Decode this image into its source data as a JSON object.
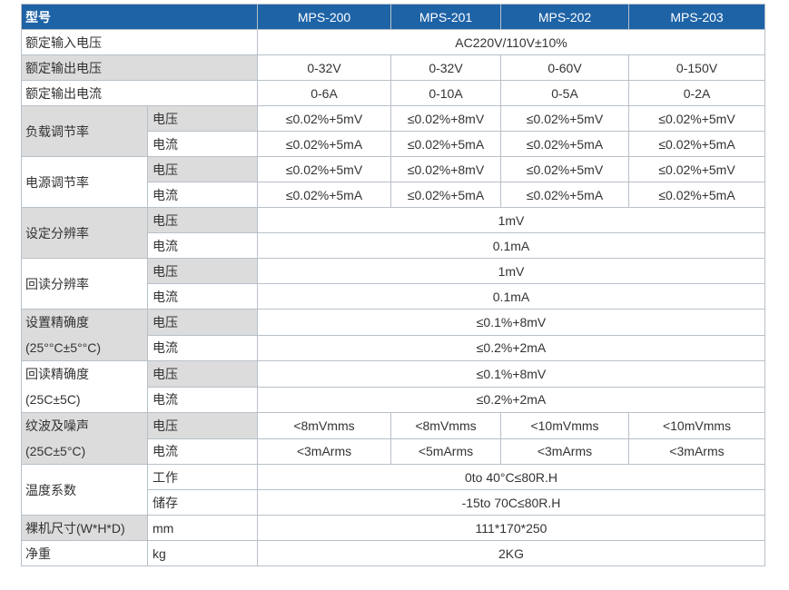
{
  "header": {
    "label": "型号",
    "models": [
      "MPS-200",
      "MPS-201",
      "MPS-202",
      "MPS-203"
    ]
  },
  "rows": {
    "input_voltage": {
      "label": "额定输入电压",
      "value": "AC220V/110V±10%"
    },
    "output_voltage": {
      "label": "额定输出电压",
      "values": [
        "0-32V",
        "0-32V",
        "0-60V",
        "0-150V"
      ]
    },
    "output_current": {
      "label": "额定输出电流",
      "values": [
        "0-6A",
        "0-10A",
        "0-5A",
        "0-2A"
      ]
    },
    "load_regulation": {
      "label": "负载调节率",
      "voltage": {
        "label": "电压",
        "values": [
          "≤0.02%+5mV",
          "≤0.02%+8mV",
          "≤0.02%+5mV",
          "≤0.02%+5mV"
        ]
      },
      "current": {
        "label": "电流",
        "values": [
          "≤0.02%+5mA",
          "≤0.02%+5mA",
          "≤0.02%+5mA",
          "≤0.02%+5mA"
        ]
      }
    },
    "line_regulation": {
      "label": "电源调节率",
      "voltage": {
        "label": "电压",
        "values": [
          "≤0.02%+5mV",
          "≤0.02%+8mV",
          "≤0.02%+5mV",
          "≤0.02%+5mV"
        ]
      },
      "current": {
        "label": "电流",
        "values": [
          "≤0.02%+5mA",
          "≤0.02%+5mA",
          "≤0.02%+5mA",
          "≤0.02%+5mA"
        ]
      }
    },
    "set_resolution": {
      "label": "设定分辨率",
      "voltage": {
        "label": "电压",
        "value": "1mV"
      },
      "current": {
        "label": "电流",
        "value": "0.1mA"
      }
    },
    "readback_resolution": {
      "label": "回读分辨率",
      "voltage": {
        "label": "电压",
        "value": "1mV"
      },
      "current": {
        "label": "电流",
        "value": "0.1mA"
      }
    },
    "set_accuracy": {
      "label": "设置精确度",
      "condition": "(25°°C±5°°C)",
      "voltage": {
        "label": "电压",
        "value": "≤0.1%+8mV"
      },
      "current": {
        "label": "电流",
        "value": "≤0.2%+2mA"
      }
    },
    "readback_accuracy": {
      "label": "回读精确度",
      "condition": "(25C±5C)",
      "voltage": {
        "label": "电压",
        "value": "≤0.1%+8mV"
      },
      "current": {
        "label": "电流",
        "value": "≤0.2%+2mA"
      }
    },
    "ripple_noise": {
      "label": "纹波及噪声",
      "condition": "(25C±5°C)",
      "voltage": {
        "label": "电压",
        "values": [
          "<8mVmms",
          "<8mVmms",
          "<10mVmms",
          "<10mVmms"
        ]
      },
      "current": {
        "label": "电流",
        "values": [
          "<3mArms",
          "<5mArms",
          "<3mArms",
          "<3mArms"
        ]
      }
    },
    "temperature": {
      "label": "温度系数",
      "operating": {
        "label": "工作",
        "value": "0to 40°C≤80R.H"
      },
      "storage": {
        "label": "储存",
        "value": "-15to 70C≤80R.H"
      }
    },
    "dimensions": {
      "label": "裸机尺寸(W*H*D)",
      "unit": "mm",
      "value": "111*170*250"
    },
    "weight": {
      "label": "净重",
      "unit": "kg",
      "value": "2KG"
    }
  },
  "colors": {
    "header_bg": "#1e63a6",
    "header_text": "#ffffff",
    "shade": "#dcdcdc",
    "border": "#b8c0c8"
  }
}
